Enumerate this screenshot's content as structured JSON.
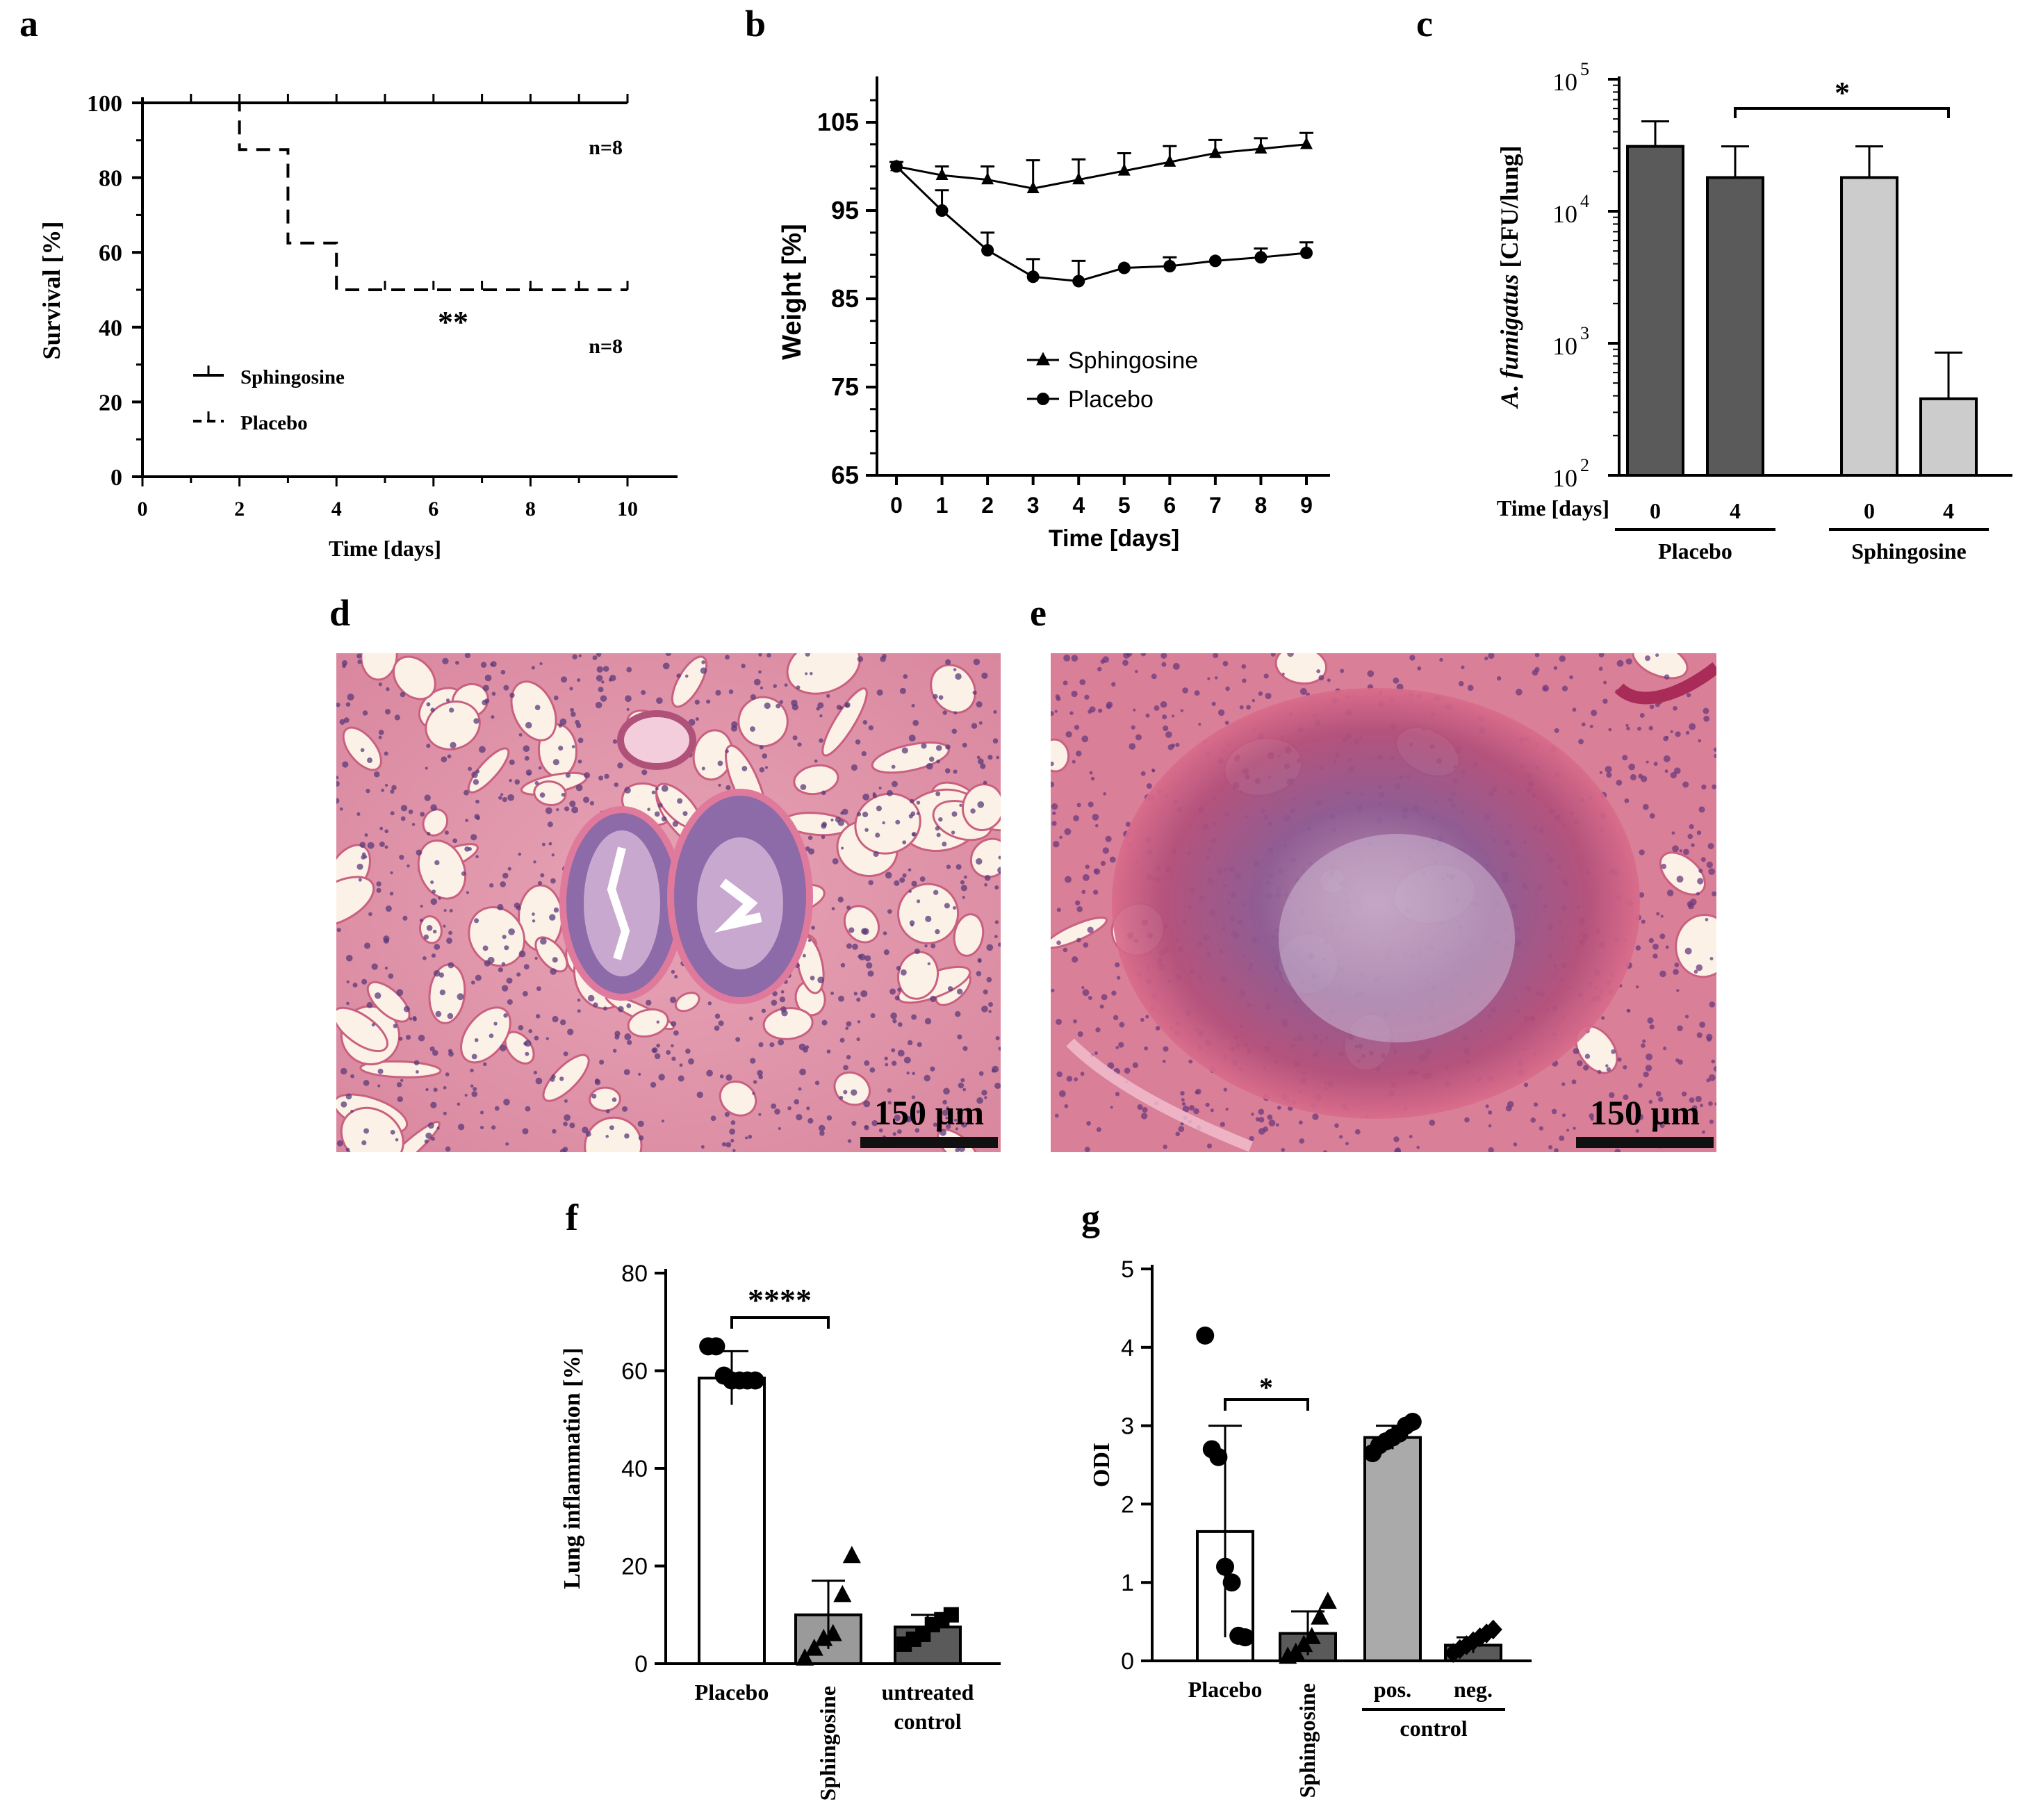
{
  "panels": {
    "a": "a",
    "b": "b",
    "c": "c",
    "d": "d",
    "e": "e",
    "f": "f",
    "g": "g"
  },
  "chart_data": [
    {
      "panel": "a",
      "type": "line",
      "xlabel": "Time [days]",
      "ylabel": "Survival [%]",
      "xlim": [
        0,
        10
      ],
      "ylim": [
        0,
        100
      ],
      "xticks": [
        0,
        2,
        4,
        6,
        8,
        10
      ],
      "yticks": [
        0,
        20,
        40,
        60,
        80,
        100
      ],
      "series": [
        {
          "name": "Sphingosine",
          "style": "solid",
          "x": [
            0,
            10
          ],
          "y": [
            100,
            100
          ],
          "censor_x": [
            1,
            2,
            3,
            4,
            5,
            6,
            7,
            8,
            9,
            10
          ],
          "n_label": "n=8"
        },
        {
          "name": "Placebo",
          "style": "dashed",
          "x": [
            0,
            2,
            2,
            3,
            3,
            4,
            4,
            10
          ],
          "y": [
            100,
            100,
            87.5,
            87.5,
            62.5,
            62.5,
            50,
            50
          ],
          "censor_x": [
            5,
            6,
            7,
            8,
            9,
            10
          ],
          "n_label": "n=8"
        }
      ],
      "annotation": "**",
      "legend_position": "bottom-left"
    },
    {
      "panel": "b",
      "type": "line",
      "xlabel": "Time [days]",
      "ylabel": "Weight  [%]",
      "xlim": [
        0,
        9
      ],
      "ylim": [
        65,
        110
      ],
      "x": [
        0,
        1,
        2,
        3,
        4,
        5,
        6,
        7,
        8,
        9
      ],
      "yticks": [
        65,
        75,
        85,
        95,
        105
      ],
      "series": [
        {
          "name": "Sphingosine",
          "marker": "triangle",
          "y": [
            100,
            99,
            98.5,
            97.5,
            98.5,
            99.5,
            100.5,
            101.5,
            102,
            102.5
          ],
          "err": [
            0.5,
            1,
            1.5,
            3.2,
            2.3,
            2,
            1.8,
            1.5,
            1.2,
            1.3
          ]
        },
        {
          "name": "Placebo",
          "marker": "circle",
          "y": [
            100,
            95,
            90.5,
            87.5,
            87,
            88.5,
            88.7,
            89.3,
            89.7,
            90.2
          ],
          "err": [
            0.3,
            2.3,
            2,
            2,
            2.3,
            0.2,
            1,
            0.2,
            1,
            1.2
          ]
        }
      ],
      "legend_position": "center"
    },
    {
      "panel": "c",
      "type": "bar",
      "ylabel_italic": "A. fumigatus",
      "ylabel_rest": "[CFU/lung]",
      "xlabel": "Time [days]",
      "yscale": "log",
      "ylim": [
        100,
        100000
      ],
      "ytick_base": "10",
      "ytick_exponents": [
        "2",
        "3",
        "4",
        "5"
      ],
      "categories": [
        "0",
        "4",
        "0",
        "4"
      ],
      "groups": [
        {
          "label": "Placebo",
          "indices": [
            0,
            1
          ]
        },
        {
          "label": "Sphingosine",
          "indices": [
            2,
            3
          ]
        }
      ],
      "values": [
        31000,
        18000,
        18000,
        380
      ],
      "err_upper": [
        48000,
        31000,
        31000,
        850
      ],
      "colors": [
        "#5a5a5a",
        "#5a5a5a",
        "#cccccc",
        "#cccccc"
      ],
      "annotation": "*"
    },
    {
      "panel": "f",
      "type": "bar",
      "ylabel": "Lung inflammation [%]",
      "ylim": [
        0,
        80
      ],
      "yticks": [
        0,
        20,
        40,
        60,
        80
      ],
      "categories": [
        {
          "lines": [
            "Placebo"
          ],
          "rotated": false
        },
        {
          "lines": [
            "Sphingosine"
          ],
          "rotated": true
        },
        {
          "lines": [
            "untreated",
            "control"
          ],
          "rotated": false
        }
      ],
      "values": [
        58.5,
        10,
        7.5
      ],
      "err": [
        5.5,
        7,
        2.5
      ],
      "colors": [
        "#ffffff",
        "#9a9a9a",
        "#5a5a5a"
      ],
      "points": [
        [
          65,
          65,
          59,
          58,
          58,
          58,
          58
        ],
        [
          1,
          3,
          5,
          6,
          14,
          22
        ],
        [
          4,
          5,
          6,
          8,
          9,
          10
        ]
      ],
      "markers": [
        "circle",
        "triangle",
        "square"
      ],
      "annotation": "****"
    },
    {
      "panel": "g",
      "type": "bar",
      "ylabel": "ODI",
      "ylim": [
        0,
        5
      ],
      "yticks": [
        0,
        1,
        2,
        3,
        4,
        5
      ],
      "categories": [
        {
          "lines": [
            "Placebo"
          ],
          "rotated": false
        },
        {
          "lines": [
            "Sphingosine"
          ],
          "rotated": true
        },
        {
          "lines": [
            "pos."
          ],
          "rotated": false
        },
        {
          "lines": [
            "neg."
          ],
          "rotated": false
        }
      ],
      "group_label": "control",
      "values": [
        1.65,
        0.35,
        2.85,
        0.2
      ],
      "err": [
        1.35,
        0.28,
        0.15,
        0.1
      ],
      "colors": [
        "#ffffff",
        "#5a5a5a",
        "#aaaaaa",
        "#5a5a5a"
      ],
      "points": [
        [
          4.15,
          2.7,
          2.6,
          1.2,
          1.0,
          0.32,
          0.3
        ],
        [
          0.05,
          0.1,
          0.2,
          0.3,
          0.55,
          0.75
        ],
        [
          2.65,
          2.75,
          2.8,
          2.85,
          2.9,
          3.0,
          3.05
        ],
        [
          0.1,
          0.15,
          0.2,
          0.25,
          0.3,
          0.35,
          0.4
        ]
      ],
      "markers": [
        "circle",
        "triangle",
        "circle",
        "diamond"
      ],
      "annotation": "*"
    }
  ],
  "micrographs": {
    "d": {
      "scale_label": "150 µm"
    },
    "e": {
      "scale_label": "150 µm"
    }
  }
}
